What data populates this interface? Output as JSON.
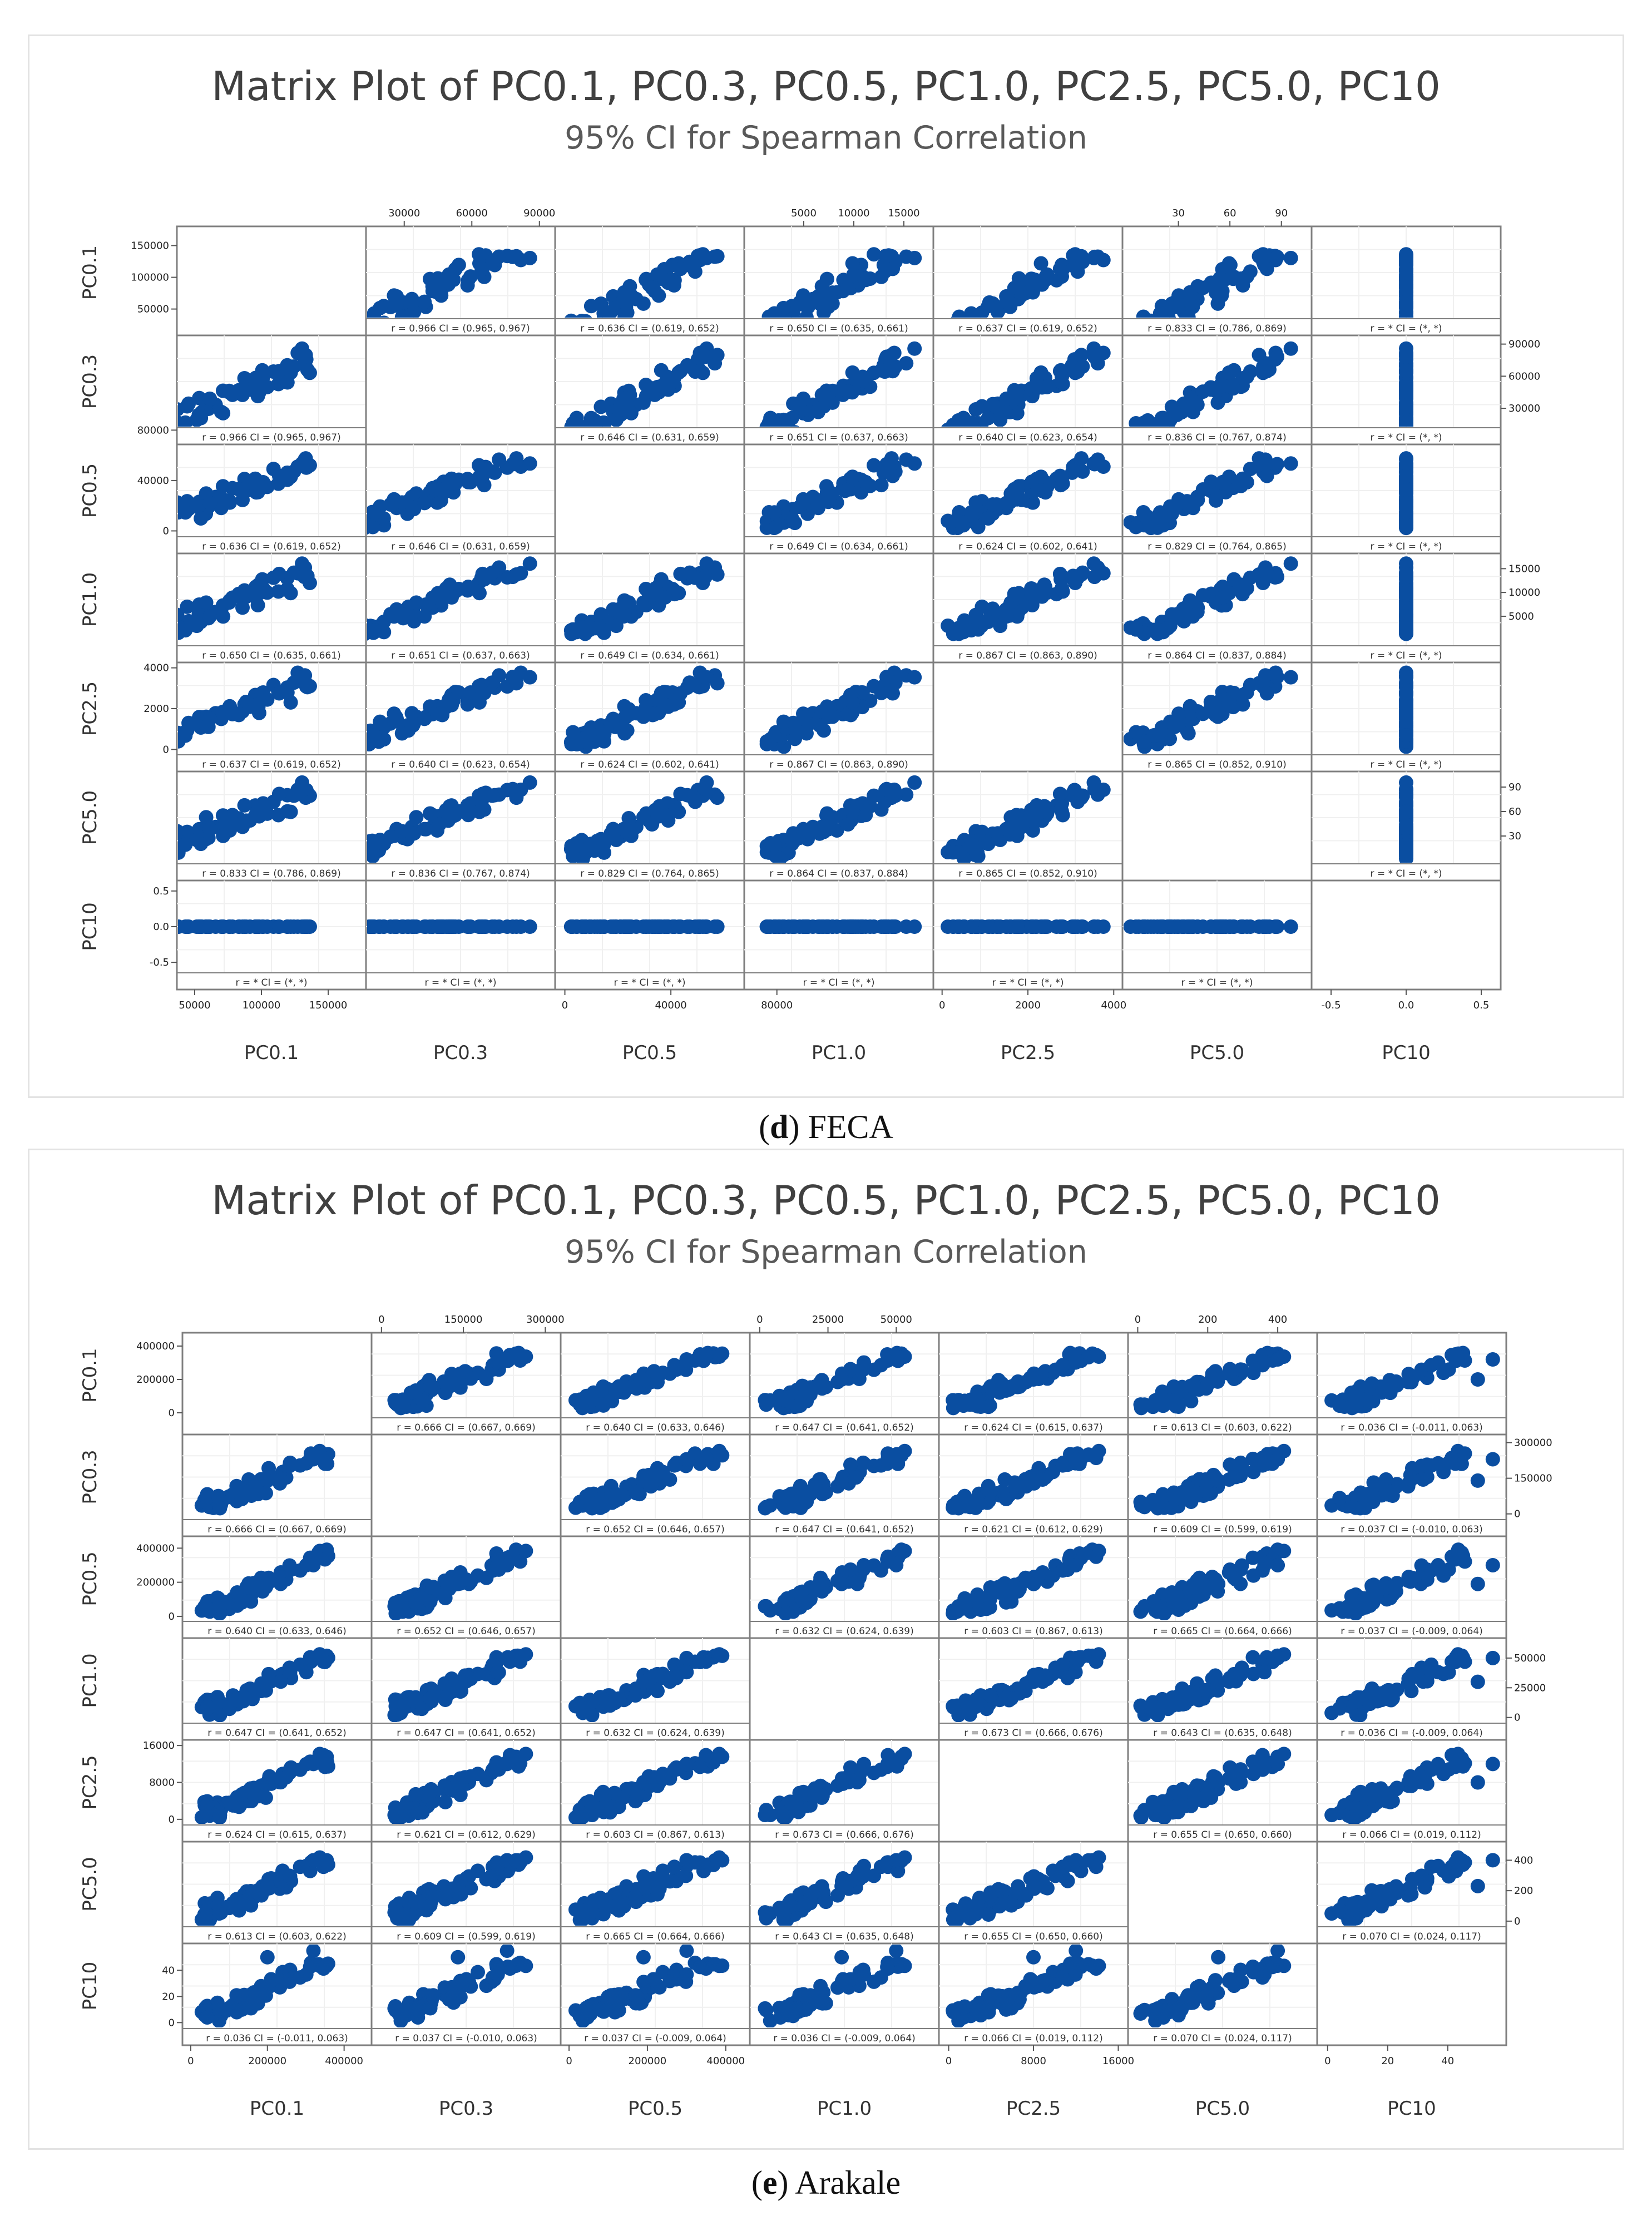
{
  "chart_data": [
    {
      "type": "scatter",
      "id": "FECA",
      "title": "Matrix Plot of PC0.1, PC0.3, PC0.5, PC1.0, PC2.5, PC5.0, PC10",
      "subtitle": "95% CI for Spearman Correlation",
      "caption_letter": "d",
      "caption_name": "FECA",
      "variables": [
        "PC0.1",
        "PC0.3",
        "PC0.5",
        "PC1.0",
        "PC2.5",
        "PC5.0",
        "PC10"
      ],
      "max": [
        165000,
        90000,
        62000,
        17000,
        4000,
        100,
        0
      ],
      "axes": [
        {
          "lim": [
            40000,
            175000
          ],
          "ticks": [
            50000,
            100000,
            150000
          ],
          "labels": [
            "50000",
            "100000",
            "150000"
          ]
        },
        {
          "lim": [
            15000,
            95000
          ],
          "ticks": [
            30000,
            60000,
            90000
          ],
          "labels": [
            "30000",
            "60000",
            "90000"
          ]
        },
        {
          "lim": [
            -2000,
            66000
          ],
          "ticks": [
            0,
            40000,
            80000
          ],
          "labels": [
            "0",
            "40000",
            "80000"
          ]
        },
        {
          "lim": [
            -500,
            17500
          ],
          "ticks": [
            5000,
            10000,
            15000
          ],
          "labels": [
            "5000",
            "10000",
            "15000"
          ]
        },
        {
          "lim": [
            -100,
            4100
          ],
          "ticks": [
            0,
            2000,
            4000
          ],
          "labels": [
            "0",
            "2000",
            "4000"
          ]
        },
        {
          "lim": [
            0,
            105
          ],
          "ticks": [
            30,
            60,
            90
          ],
          "labels": [
            "30",
            "60",
            "90"
          ]
        },
        {
          "lim": [
            -0.6,
            0.6
          ],
          "ticks": [
            -0.5,
            0.0,
            0.5
          ],
          "labels": [
            "-0.5",
            "0.0",
            "0.5"
          ]
        }
      ],
      "correlations": [
        [
          "",
          "r = 0.966  CI = (0.965, 0.967)",
          "r = 0.636  CI = (0.619, 0.652)",
          "r = 0.650  CI = (0.635, 0.661)",
          "r = 0.637  CI = (0.619, 0.652)",
          "r = 0.833  CI = (0.786, 0.869)",
          "r = *  CI = (*, *)"
        ],
        [
          "r = 0.966  CI = (0.965, 0.967)",
          "",
          "r = 0.646  CI = (0.631, 0.659)",
          "r = 0.651  CI = (0.637, 0.663)",
          "r = 0.640  CI = (0.623, 0.654)",
          "r = 0.836  CI = (0.767, 0.874)",
          "r = *  CI = (*, *)"
        ],
        [
          "r = 0.636  CI = (0.619, 0.652)",
          "r = 0.646  CI = (0.631, 0.659)",
          "",
          "r = 0.649  CI = (0.634, 0.661)",
          "r = 0.624  CI = (0.602, 0.641)",
          "r = 0.829  CI = (0.764, 0.865)",
          "r = *  CI = (*, *)"
        ],
        [
          "r = 0.650  CI = (0.635, 0.661)",
          "r = 0.651  CI = (0.637, 0.663)",
          "r = 0.649  CI = (0.634, 0.661)",
          "",
          "r = 0.867  CI = (0.863, 0.890)",
          "r = 0.864  CI = (0.837, 0.884)",
          "r = *  CI = (*, *)"
        ],
        [
          "r = 0.637  CI = (0.619, 0.652)",
          "r = 0.640  CI = (0.623, 0.654)",
          "r = 0.624  CI = (0.602, 0.641)",
          "r = 0.867  CI = (0.863, 0.890)",
          "",
          "r = 0.865  CI = (0.852, 0.910)",
          "r = *  CI = (*, *)"
        ],
        [
          "r = 0.833  CI = (0.786, 0.869)",
          "r = 0.836  CI = (0.767, 0.874)",
          "r = 0.829  CI = (0.764, 0.865)",
          "r = 0.864  CI = (0.837, 0.884)",
          "r = 0.865  CI = (0.852, 0.910)",
          "",
          "r = *  CI = (*, *)"
        ],
        [
          "r = *  CI = (*, *)",
          "r = *  CI = (*, *)",
          "r = *  CI = (*, *)",
          "r = *  CI = (*, *)",
          "r = *  CI = (*, *)",
          "r = *  CI = (*, *)",
          ""
        ]
      ]
    },
    {
      "type": "scatter",
      "id": "Arakale",
      "title": "Matrix Plot of PC0.1, PC0.3, PC0.5, PC1.0, PC2.5, PC5.0, PC10",
      "subtitle": "95% CI for Spearman Correlation",
      "caption_letter": "e",
      "caption_name": "Arakale",
      "variables": [
        "PC0.1",
        "PC0.3",
        "PC0.5",
        "PC1.0",
        "PC2.5",
        "PC5.0",
        "PC10"
      ],
      "max": [
        420000,
        300000,
        420000,
        60000,
        16000,
        480,
        55
      ],
      "axes": [
        {
          "lim": [
            -10000,
            460000
          ],
          "ticks": [
            0,
            200000,
            400000
          ],
          "labels": [
            "0",
            "200000",
            "400000"
          ]
        },
        {
          "lim": [
            -10000,
            320000
          ],
          "ticks": [
            0,
            150000,
            300000
          ],
          "labels": [
            "0",
            "150000",
            "300000"
          ]
        },
        {
          "lim": [
            -10000,
            450000
          ],
          "ticks": [
            0,
            200000,
            400000
          ],
          "labels": [
            "0",
            "200000",
            "400000"
          ]
        },
        {
          "lim": [
            -2000,
            64000
          ],
          "ticks": [
            0,
            25000,
            50000
          ],
          "labels": [
            "0",
            "25000",
            "50000"
          ]
        },
        {
          "lim": [
            -500,
            16500
          ],
          "ticks": [
            0,
            8000,
            16000
          ],
          "labels": [
            "0",
            "8000",
            "16000"
          ]
        },
        {
          "lim": [
            -15,
            500
          ],
          "ticks": [
            0,
            200,
            400
          ],
          "labels": [
            "0",
            "200",
            "400"
          ]
        },
        {
          "lim": [
            -2,
            58
          ],
          "ticks": [
            0,
            20,
            40
          ],
          "labels": [
            "0",
            "20",
            "40"
          ]
        }
      ],
      "correlations": [
        [
          "",
          "r = 0.666  CI = (0.667, 0.669)",
          "r = 0.640  CI = (0.633, 0.646)",
          "r = 0.647  CI = (0.641, 0.652)",
          "r = 0.624  CI = (0.615, 0.637)",
          "r = 0.613  CI = (0.603, 0.622)",
          "r = 0.036  CI = (-0.011, 0.063)"
        ],
        [
          "r = 0.666  CI = (0.667, 0.669)",
          "",
          "r = 0.652  CI = (0.646, 0.657)",
          "r = 0.647  CI = (0.641, 0.652)",
          "r = 0.621  CI = (0.612, 0.629)",
          "r = 0.609  CI = (0.599, 0.619)",
          "r = 0.037  CI = (-0.010, 0.063)"
        ],
        [
          "r = 0.640  CI = (0.633, 0.646)",
          "r = 0.652  CI = (0.646, 0.657)",
          "",
          "r = 0.632  CI = (0.624, 0.639)",
          "r = 0.603  CI = (0.867, 0.613)",
          "r = 0.665  CI = (0.664, 0.666)",
          "r = 0.037  CI = (-0.009, 0.064)"
        ],
        [
          "r = 0.647  CI = (0.641, 0.652)",
          "r = 0.647  CI = (0.641, 0.652)",
          "r = 0.632  CI = (0.624, 0.639)",
          "",
          "r = 0.673  CI = (0.666, 0.676)",
          "r = 0.643  CI = (0.635, 0.648)",
          "r = 0.036  CI = (-0.009, 0.064)"
        ],
        [
          "r = 0.624  CI = (0.615, 0.637)",
          "r = 0.621  CI = (0.612, 0.629)",
          "r = 0.603  CI = (0.867, 0.613)",
          "r = 0.673  CI = (0.666, 0.676)",
          "",
          "r = 0.655  CI = (0.650, 0.660)",
          "r = 0.066  CI = (0.019, 0.112)"
        ],
        [
          "r = 0.613  CI = (0.603, 0.622)",
          "r = 0.609  CI = (0.599, 0.619)",
          "r = 0.665  CI = (0.664, 0.666)",
          "r = 0.643  CI = (0.635, 0.648)",
          "r = 0.655  CI = (0.650, 0.660)",
          "",
          "r = 0.070  CI = (0.024, 0.117)"
        ],
        [
          "r = 0.036  CI = (-0.011, 0.063)",
          "r = 0.037  CI = (-0.010, 0.063)",
          "r = 0.037  CI = (-0.009, 0.064)",
          "r = 0.036  CI = (-0.009, 0.064)",
          "r = 0.066  CI = (0.019, 0.112)",
          "r = 0.070  CI = (0.024, 0.117)",
          ""
        ]
      ]
    }
  ]
}
